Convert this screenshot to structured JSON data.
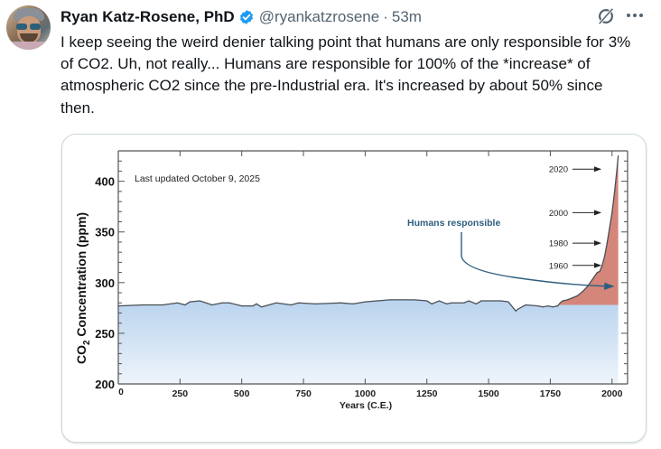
{
  "post": {
    "author_name": "Ryan Katz-Rosene, PhD",
    "verified": true,
    "handle": "@ryankatzrosene",
    "separator": "·",
    "time_ago": "53m",
    "text": "I keep seeing the weird denier talking point that humans are only responsible for 3% of CO2. Uh, not really... Humans are responsible for 100% of the *increase* of atmospheric CO2 since the pre-Industrial era. It's increased by about 50% since then.",
    "icons": {
      "avatar": "avatar-photo",
      "verified": "verified-badge-icon",
      "grok": "grok-icon",
      "more": "more-options-icon"
    },
    "colors": {
      "verified": "#1d9bf0",
      "handle": "#536471",
      "text": "#0f1419"
    }
  },
  "chart_data": {
    "type": "area",
    "annotation_updated": "Last updated October 9, 2025",
    "xlabel": "Years (C.E.)",
    "ylabel_prefix": "CO",
    "ylabel_sub": "2",
    "ylabel_suffix": " Concentration (ppm)",
    "xlim": [
      0,
      2063
    ],
    "ylim": [
      200,
      430
    ],
    "x_ticks": [
      0,
      250,
      500,
      750,
      1000,
      1250,
      1500,
      1750,
      2000
    ],
    "x_tick_labels": [
      "0",
      "250",
      "500",
      "750",
      "1000",
      "1250",
      "1500",
      "1750",
      "2000"
    ],
    "y_ticks": [
      200,
      250,
      300,
      350,
      400
    ],
    "y_tick_labels": [
      "200",
      "250",
      "300",
      "350",
      "400"
    ],
    "baseline_ppm": 278,
    "humans_label": "Humans responsible",
    "year_markers": [
      {
        "label": "2020",
        "ppm": 412
      },
      {
        "label": "2000",
        "ppm": 369
      },
      {
        "label": "1980",
        "ppm": 339
      },
      {
        "label": "1960",
        "ppm": 317
      }
    ],
    "colors": {
      "natural_fill_top": "#b9d3ee",
      "natural_fill_bottom": "#eef4fb",
      "human_fill": "#d4867a",
      "line": "#4a4f55",
      "annotation": "#2e5e7e"
    },
    "series": [
      {
        "name": "CO2 concentration",
        "x": [
          0,
          100,
          180,
          240,
          270,
          290,
          330,
          380,
          420,
          450,
          500,
          545,
          560,
          580,
          640,
          700,
          730,
          800,
          900,
          950,
          1000,
          1050,
          1100,
          1150,
          1200,
          1250,
          1270,
          1300,
          1330,
          1350,
          1400,
          1420,
          1450,
          1470,
          1500,
          1550,
          1580,
          1610,
          1620,
          1650,
          1700,
          1720,
          1740,
          1760,
          1780,
          1790,
          1800,
          1820,
          1840,
          1860,
          1880,
          1900,
          1920,
          1940,
          1950,
          1960,
          1970,
          1980,
          1990,
          2000,
          2010,
          2020,
          2025
        ],
        "y": [
          277,
          278,
          278,
          280,
          278,
          281,
          282,
          278,
          280,
          280,
          277,
          277,
          279,
          276,
          280,
          278,
          280,
          279,
          280,
          279,
          281,
          282,
          283,
          283,
          283,
          282,
          279,
          282,
          279,
          280,
          280,
          282,
          279,
          282,
          282,
          282,
          281,
          272,
          274,
          278,
          277,
          276,
          277,
          276,
          277,
          280,
          282,
          283,
          285,
          287,
          291,
          296,
          303,
          310,
          311,
          317,
          326,
          339,
          354,
          369,
          389,
          412,
          425
        ]
      }
    ]
  }
}
